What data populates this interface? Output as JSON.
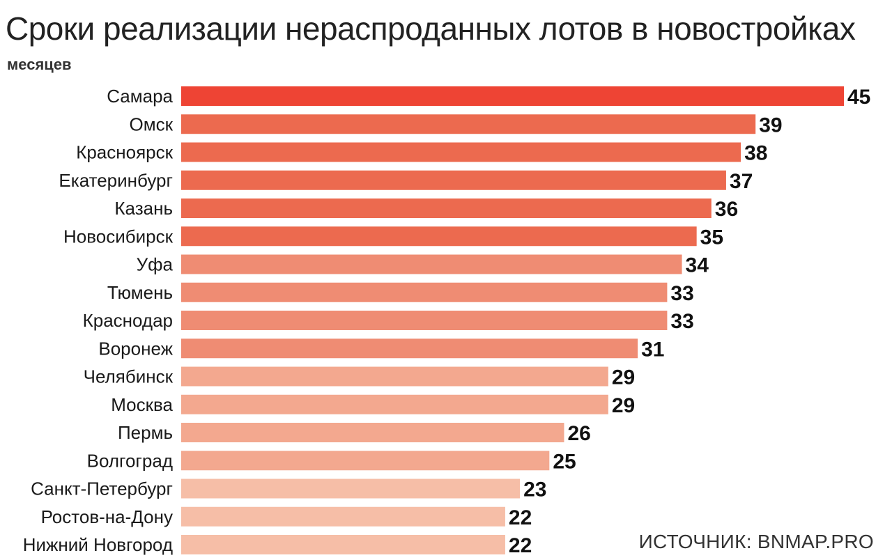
{
  "header": {
    "title": "Сроки реализации нераспроданных лотов в новостройках",
    "subtitle": "месяцев"
  },
  "footer": {
    "source": "ИСТОЧНИК: BNMAP.PRO"
  },
  "colors": {
    "accent_dark": "#ee4434",
    "accent_1": "#ec6a4f",
    "accent_2": "#ef8c73",
    "accent_3": "#f3a88f",
    "accent_light": "#f6bea7"
  },
  "chart_data": {
    "type": "bar",
    "orientation": "horizontal",
    "categories": [
      "Самара",
      "Омск",
      "Красноярск",
      "Екатеринбург",
      "Казань",
      "Новосибирск",
      "Уфа",
      "Тюмень",
      "Краснодар",
      "Воронеж",
      "Челябинск",
      "Москва",
      "Пермь",
      "Волгоград",
      "Санкт-Петербург",
      "Ростов-на-Дону",
      "Нижний Новгород"
    ],
    "values": [
      45,
      39,
      38,
      37,
      36,
      35,
      34,
      33,
      33,
      31,
      29,
      29,
      26,
      25,
      23,
      22,
      22
    ],
    "bar_colors": [
      "#ee4434",
      "#ec6a4f",
      "#ec6a4f",
      "#ec6a4f",
      "#ec6a4f",
      "#ec6a4f",
      "#ef8c73",
      "#ef8c73",
      "#ef8c73",
      "#ef8c73",
      "#f3a88f",
      "#f3a88f",
      "#f3a88f",
      "#f3a88f",
      "#f6bea7",
      "#f6bea7",
      "#f6bea7"
    ],
    "title": "Сроки реализации нераспроданных лотов в новостройках",
    "ylabel": "месяцев",
    "xlim": [
      0,
      45
    ],
    "grid": false,
    "legend": "none"
  }
}
